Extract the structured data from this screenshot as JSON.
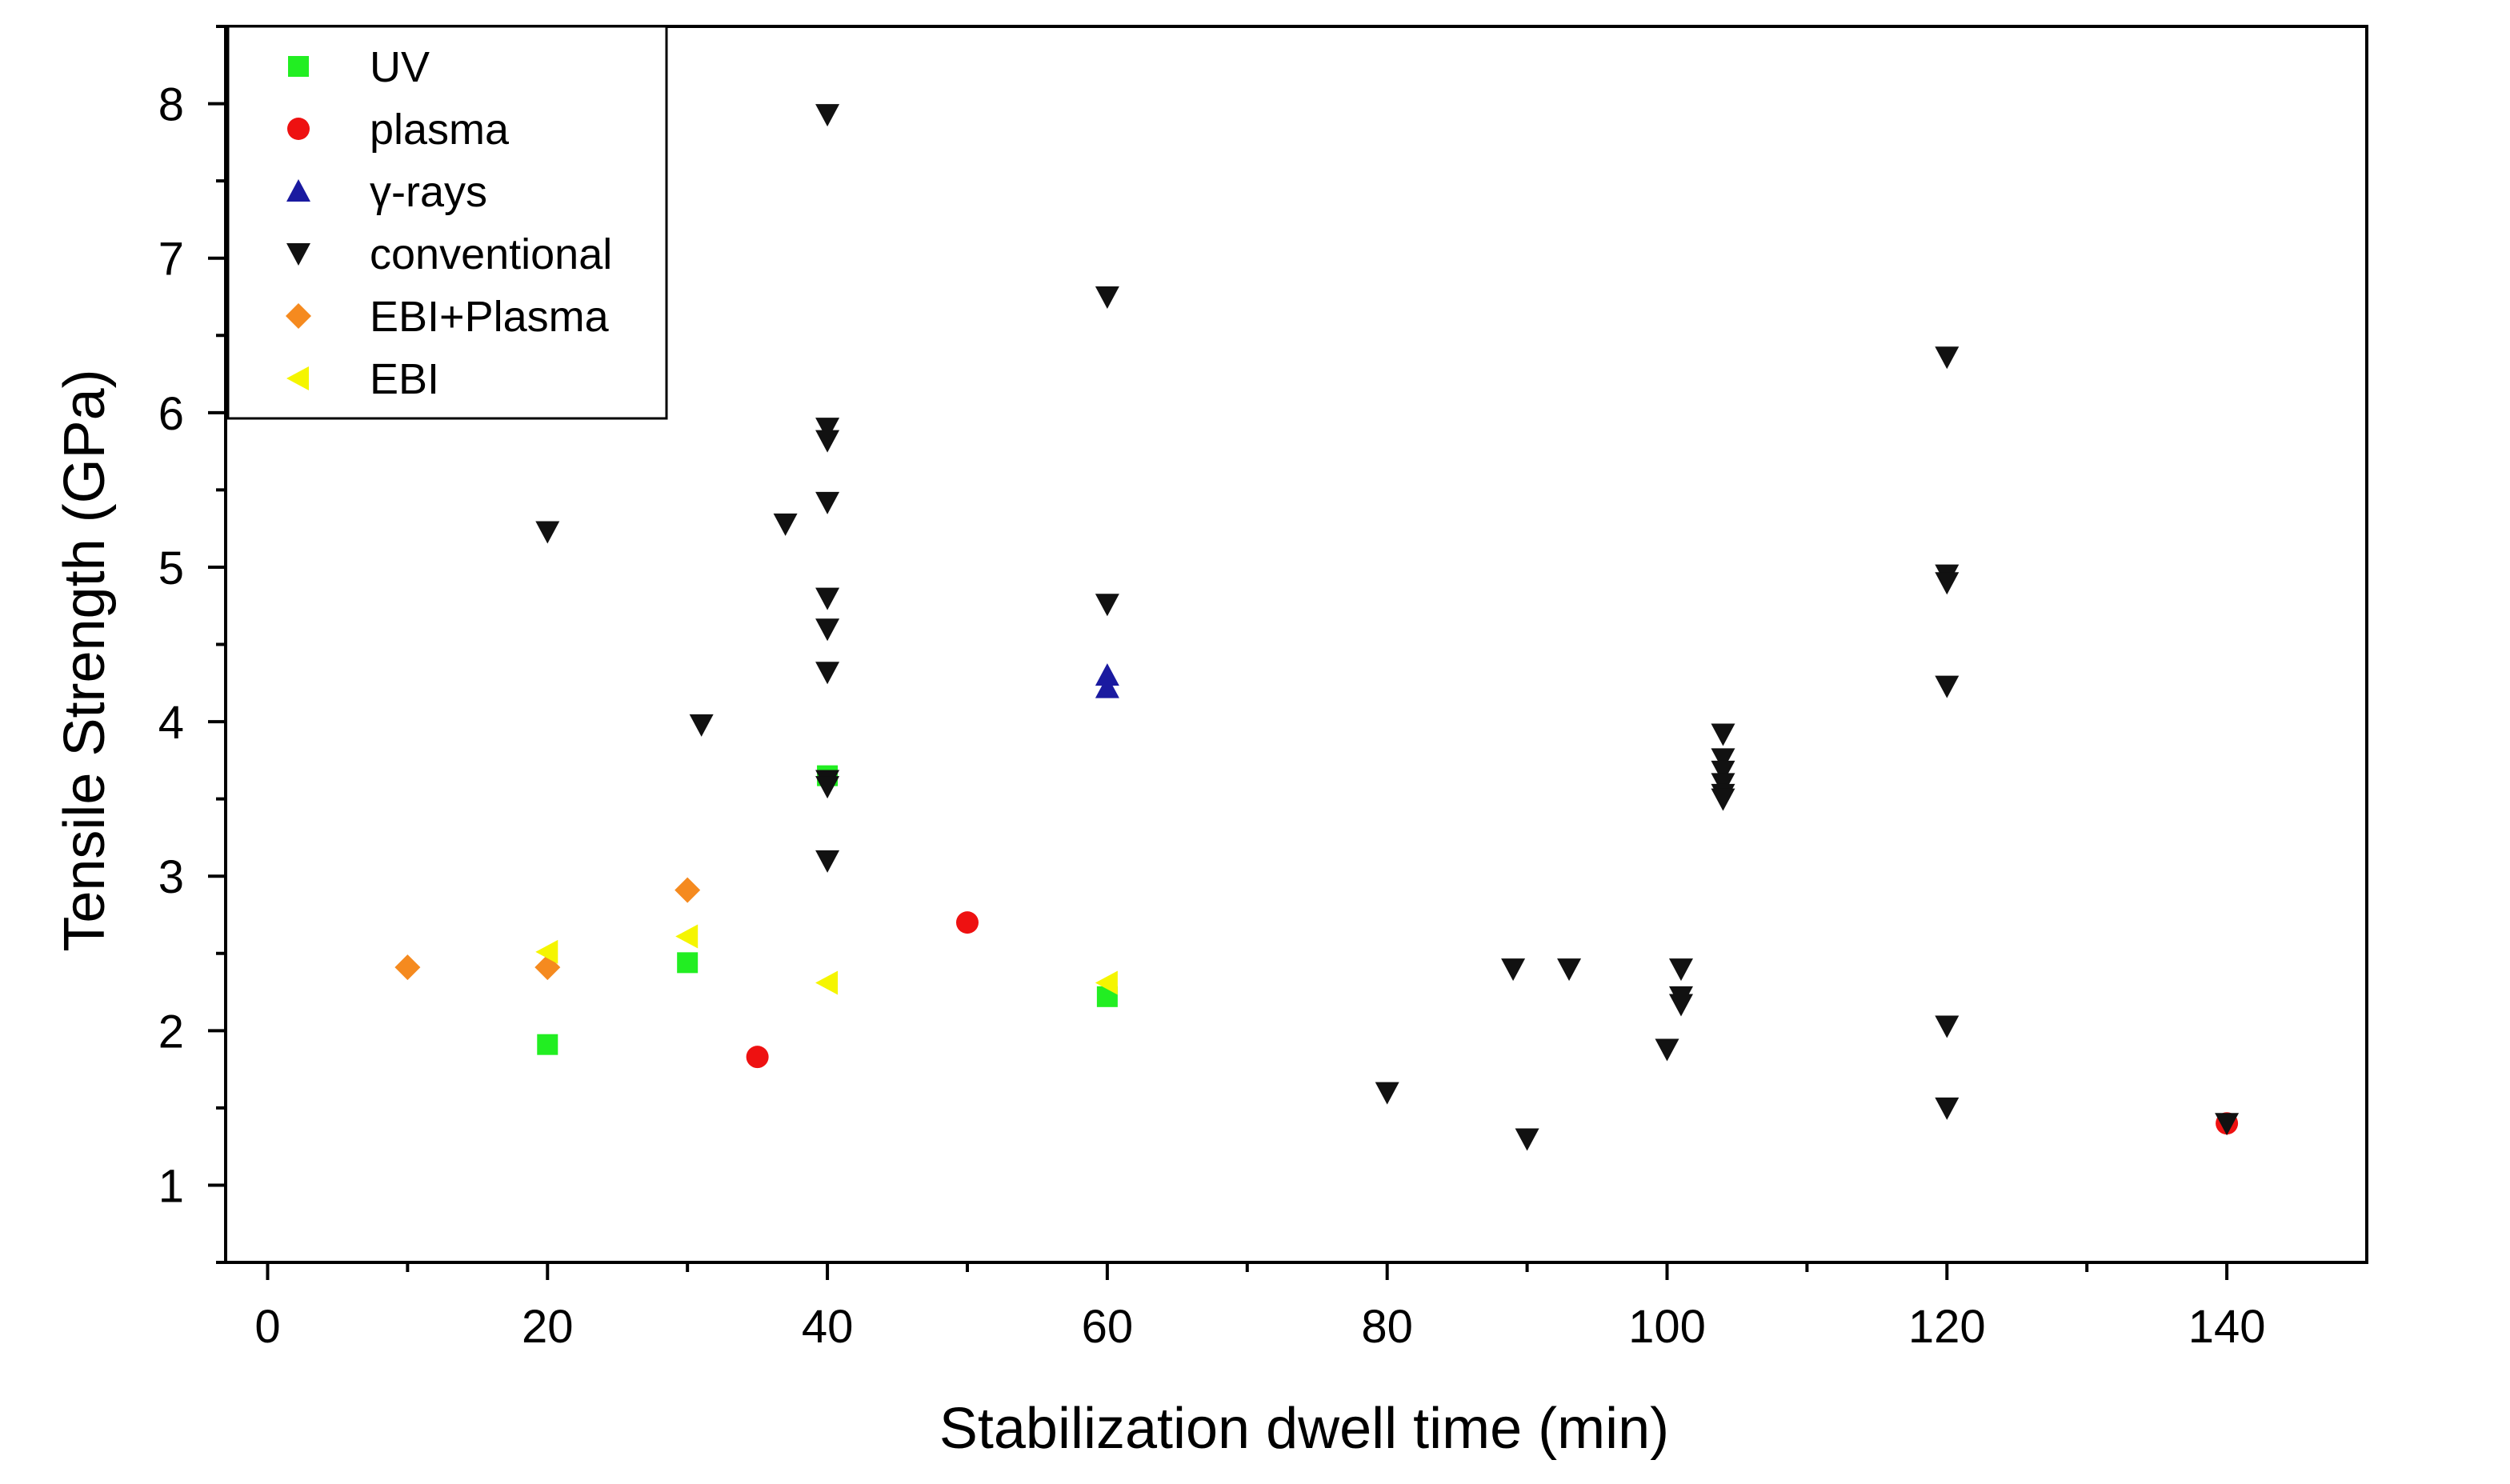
{
  "chart_data": {
    "type": "scatter",
    "title": "",
    "xlabel": "Stabilization dwell time (min)",
    "ylabel": "Tensile Strength (GPa)",
    "xlim": [
      -3,
      150
    ],
    "ylim": [
      0.5,
      8.5
    ],
    "xticks": [
      0,
      20,
      40,
      60,
      80,
      100,
      120,
      140
    ],
    "yticks": [
      1,
      2,
      3,
      4,
      5,
      6,
      7,
      8
    ],
    "grid": false,
    "legend_position": "top-left",
    "series": [
      {
        "name": "UV",
        "marker": "square",
        "color": "#22ee22",
        "points": [
          [
            20,
            1.91
          ],
          [
            30,
            2.44
          ],
          [
            40,
            3.65
          ],
          [
            60,
            2.22
          ]
        ]
      },
      {
        "name": "plasma",
        "marker": "circle",
        "color": "#ee1111",
        "points": [
          [
            35,
            1.83
          ],
          [
            50,
            2.7
          ],
          [
            140,
            1.4
          ]
        ]
      },
      {
        "name": "γ-rays",
        "marker": "triangle-up",
        "color": "#1a1aa0",
        "points": [
          [
            60,
            4.3
          ],
          [
            60,
            4.22
          ]
        ]
      },
      {
        "name": "conventional",
        "marker": "triangle-down",
        "color": "#111111",
        "points": [
          [
            20,
            5.23
          ],
          [
            31,
            3.98
          ],
          [
            37,
            5.28
          ],
          [
            40,
            7.93
          ],
          [
            40,
            5.9
          ],
          [
            40,
            5.82
          ],
          [
            40,
            5.42
          ],
          [
            40,
            4.8
          ],
          [
            40,
            4.6
          ],
          [
            40,
            4.32
          ],
          [
            40,
            3.62
          ],
          [
            40,
            3.58
          ],
          [
            40,
            3.1
          ],
          [
            60,
            6.75
          ],
          [
            60,
            4.76
          ],
          [
            80,
            1.6
          ],
          [
            89,
            2.4
          ],
          [
            90,
            1.3
          ],
          [
            93,
            2.4
          ],
          [
            100,
            1.88
          ],
          [
            101,
            2.4
          ],
          [
            101,
            2.22
          ],
          [
            101,
            2.17
          ],
          [
            104,
            3.92
          ],
          [
            104,
            3.76
          ],
          [
            104,
            3.68
          ],
          [
            104,
            3.6
          ],
          [
            104,
            3.53
          ],
          [
            104,
            3.5
          ],
          [
            120,
            6.36
          ],
          [
            120,
            4.95
          ],
          [
            120,
            4.9
          ],
          [
            120,
            4.23
          ],
          [
            120,
            2.03
          ],
          [
            120,
            1.5
          ],
          [
            140,
            1.4
          ]
        ]
      },
      {
        "name": "EBI+Plasma",
        "marker": "diamond",
        "color": "#f58a1f",
        "points": [
          [
            10,
            2.41
          ],
          [
            20,
            2.41
          ],
          [
            30,
            2.91
          ]
        ]
      },
      {
        "name": "EBI",
        "marker": "triangle-left",
        "color": "#f5f500",
        "points": [
          [
            20,
            2.51
          ],
          [
            30,
            2.61
          ],
          [
            40,
            2.31
          ],
          [
            60,
            2.31
          ]
        ]
      }
    ]
  }
}
